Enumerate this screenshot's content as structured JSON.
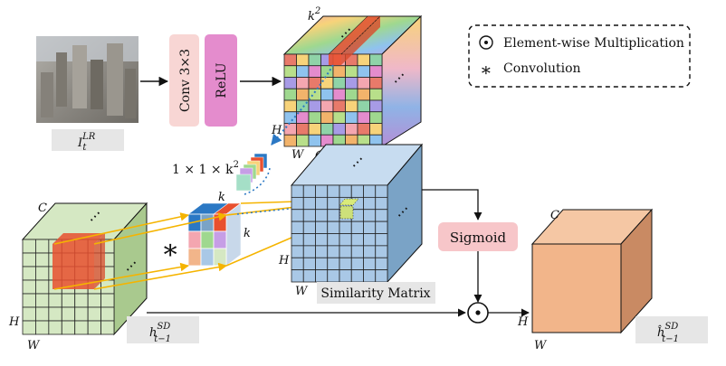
{
  "input_label": "I",
  "input_sup": "LR",
  "input_sub": "t",
  "conv_label": "Conv 3×3",
  "relu_label": "ReLU",
  "k2_label": "k",
  "k2_sup": "2",
  "ellipsis": "⋯",
  "kernel_shape_prefix": "1 × 1 × k",
  "kernel_shape_sup": "2",
  "dim_H": "H",
  "dim_W": "W",
  "dim_C": "C",
  "dim_k": "k",
  "conv_symbol": "∗",
  "legend": {
    "elementwise_symbol": "⊙",
    "elementwise_label": "Element-wise Multiplication",
    "conv_symbol": "∗",
    "conv_label": "Convolution"
  },
  "similarity_label": "Similarity Matrix",
  "sigmoid_label": "Sigmoid",
  "hidden_in_main": "h",
  "hidden_in_sup": "SD",
  "hidden_in_sub": "t−1",
  "hidden_out_main": "ĥ",
  "hidden_out_sup": "SD",
  "hidden_out_sub": "t−1",
  "multiply_symbol": "⊙",
  "colors": {
    "conv_box": "#f8d6d4",
    "relu_box": "#e48ccd",
    "green_cube": "#d5e8c3",
    "blue_cube": "#a9c8e6",
    "orange_cube": "#f2b58a",
    "highlight": "#e8502f",
    "arrow_yellow": "#f5b400",
    "arrow_blue": "#2b78c4",
    "label_box": "#e6e6e6"
  }
}
